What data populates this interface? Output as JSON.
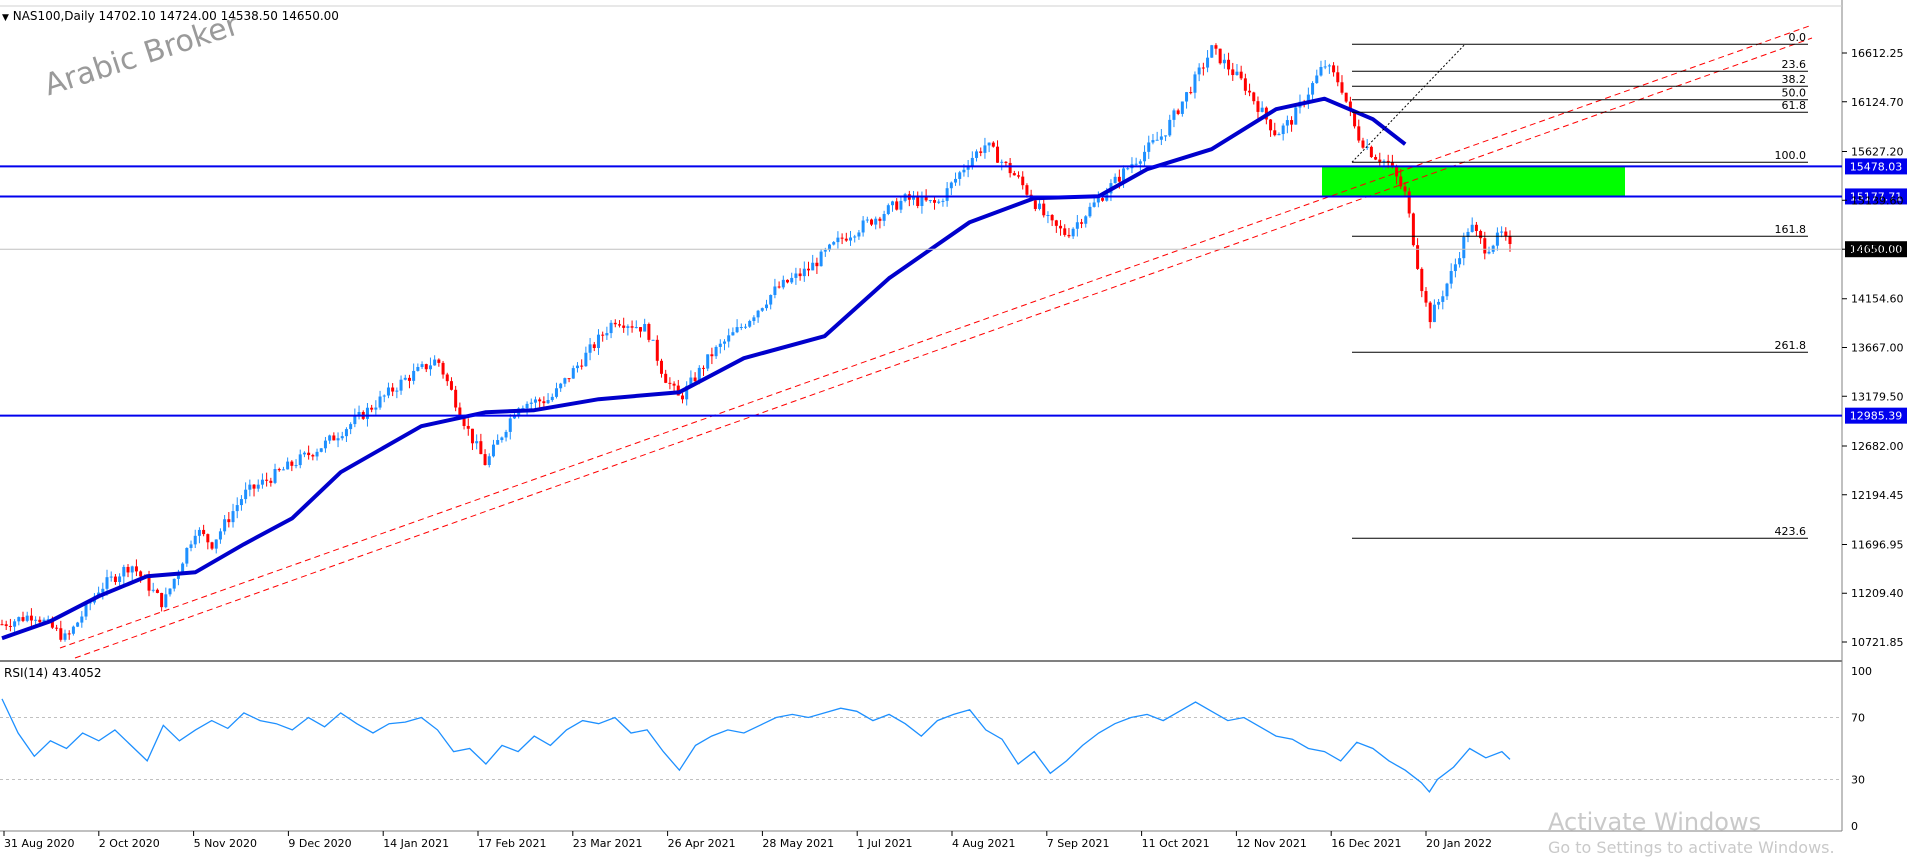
{
  "header": {
    "symbol_line": "NAS100,Daily  14702.10 14724.00 14538.50 14650.00",
    "watermark": "Arabic Broker"
  },
  "price_axis": {
    "ticks": [
      "16612.25",
      "16124.70",
      "15627.20",
      "15139.60",
      "14650.00",
      "14154.60",
      "13667.00",
      "13179.50",
      "12682.00",
      "12194.45",
      "11696.95",
      "11209.40",
      "10721.85"
    ],
    "tick_values": [
      16612.25,
      16124.7,
      15627.2,
      15139.6,
      14650.0,
      14154.6,
      13667.0,
      13179.5,
      12682.0,
      12194.45,
      11696.95,
      11209.4,
      10721.85
    ]
  },
  "horizontal_levels": [
    {
      "label": "15478.03",
      "value": 15478.03,
      "color": "#0000ee"
    },
    {
      "label": "15177.71",
      "value": 15177.71,
      "color": "#0000ee"
    },
    {
      "label": "12985.39",
      "value": 12985.39,
      "color": "#0000ee"
    }
  ],
  "current_price": {
    "label": "14650.00",
    "value": 14650.0
  },
  "fibonacci": {
    "levels": [
      {
        "label": "0.0",
        "value": 16700
      },
      {
        "label": "23.6",
        "value": 16430
      },
      {
        "label": "38.2",
        "value": 16280
      },
      {
        "label": "50.0",
        "value": 16145
      },
      {
        "label": "61.8",
        "value": 16020
      },
      {
        "label": "100.0",
        "value": 15520
      },
      {
        "label": "161.8",
        "value": 14780
      },
      {
        "label": "261.8",
        "value": 13620
      },
      {
        "label": "423.6",
        "value": 11760
      }
    ]
  },
  "x_axis": {
    "labels": [
      "31 Aug 2020",
      "2 Oct 2020",
      "5 Nov 2020",
      "9 Dec 2020",
      "14 Jan 2021",
      "17 Feb 2021",
      "23 Mar 2021",
      "26 Apr 2021",
      "28 May 2021",
      "1 Jul 2021",
      "4 Aug 2021",
      "7 Sep 2021",
      "11 Oct 2021",
      "12 Nov 2021",
      "16 Dec 2021",
      "20 Jan 2022"
    ]
  },
  "rsi": {
    "label": "RSI(14) 43.4052",
    "ticks": [
      "100",
      "70",
      "30",
      "0"
    ],
    "levels": [
      100,
      70,
      30,
      0
    ]
  },
  "chart_data": {
    "type": "candlestick",
    "title": "NAS100,Daily",
    "ylim": [
      10500,
      17000
    ],
    "x_range": [
      "31 Aug 2020",
      "20 Jan 2022"
    ],
    "ohlc_last": {
      "open": 14702.1,
      "high": 14724.0,
      "low": 14538.5,
      "close": 14650.0
    },
    "ma_series": [
      {
        "x": 0,
        "y": 10760
      },
      {
        "x": 0.03,
        "y": 10930
      },
      {
        "x": 0.06,
        "y": 11180
      },
      {
        "x": 0.09,
        "y": 11380
      },
      {
        "x": 0.12,
        "y": 11420
      },
      {
        "x": 0.15,
        "y": 11700
      },
      {
        "x": 0.18,
        "y": 11960
      },
      {
        "x": 0.21,
        "y": 12420
      },
      {
        "x": 0.26,
        "y": 12880
      },
      {
        "x": 0.3,
        "y": 13020
      },
      {
        "x": 0.33,
        "y": 13040
      },
      {
        "x": 0.37,
        "y": 13150
      },
      {
        "x": 0.42,
        "y": 13220
      },
      {
        "x": 0.46,
        "y": 13560
      },
      {
        "x": 0.51,
        "y": 13780
      },
      {
        "x": 0.55,
        "y": 14360
      },
      {
        "x": 0.6,
        "y": 14920
      },
      {
        "x": 0.64,
        "y": 15160
      },
      {
        "x": 0.68,
        "y": 15180
      },
      {
        "x": 0.71,
        "y": 15450
      },
      {
        "x": 0.75,
        "y": 15650
      },
      {
        "x": 0.79,
        "y": 16050
      },
      {
        "x": 0.82,
        "y": 16155
      },
      {
        "x": 0.85,
        "y": 15950
      },
      {
        "x": 0.87,
        "y": 15700
      }
    ],
    "rsi_series": [
      {
        "x": 0.0,
        "y": 82
      },
      {
        "x": 0.01,
        "y": 60
      },
      {
        "x": 0.02,
        "y": 45
      },
      {
        "x": 0.03,
        "y": 55
      },
      {
        "x": 0.04,
        "y": 50
      },
      {
        "x": 0.05,
        "y": 60
      },
      {
        "x": 0.06,
        "y": 55
      },
      {
        "x": 0.07,
        "y": 62
      },
      {
        "x": 0.08,
        "y": 52
      },
      {
        "x": 0.09,
        "y": 42
      },
      {
        "x": 0.1,
        "y": 65
      },
      {
        "x": 0.11,
        "y": 55
      },
      {
        "x": 0.12,
        "y": 62
      },
      {
        "x": 0.13,
        "y": 68
      },
      {
        "x": 0.14,
        "y": 63
      },
      {
        "x": 0.15,
        "y": 73
      },
      {
        "x": 0.16,
        "y": 68
      },
      {
        "x": 0.17,
        "y": 66
      },
      {
        "x": 0.18,
        "y": 62
      },
      {
        "x": 0.19,
        "y": 70
      },
      {
        "x": 0.2,
        "y": 64
      },
      {
        "x": 0.21,
        "y": 73
      },
      {
        "x": 0.22,
        "y": 66
      },
      {
        "x": 0.23,
        "y": 60
      },
      {
        "x": 0.24,
        "y": 66
      },
      {
        "x": 0.25,
        "y": 67
      },
      {
        "x": 0.26,
        "y": 70
      },
      {
        "x": 0.27,
        "y": 62
      },
      {
        "x": 0.28,
        "y": 48
      },
      {
        "x": 0.29,
        "y": 50
      },
      {
        "x": 0.3,
        "y": 40
      },
      {
        "x": 0.31,
        "y": 52
      },
      {
        "x": 0.32,
        "y": 48
      },
      {
        "x": 0.33,
        "y": 58
      },
      {
        "x": 0.34,
        "y": 52
      },
      {
        "x": 0.35,
        "y": 62
      },
      {
        "x": 0.36,
        "y": 68
      },
      {
        "x": 0.37,
        "y": 66
      },
      {
        "x": 0.38,
        "y": 70
      },
      {
        "x": 0.39,
        "y": 60
      },
      {
        "x": 0.4,
        "y": 62
      },
      {
        "x": 0.41,
        "y": 48
      },
      {
        "x": 0.42,
        "y": 36
      },
      {
        "x": 0.43,
        "y": 52
      },
      {
        "x": 0.44,
        "y": 58
      },
      {
        "x": 0.45,
        "y": 62
      },
      {
        "x": 0.46,
        "y": 60
      },
      {
        "x": 0.47,
        "y": 65
      },
      {
        "x": 0.48,
        "y": 70
      },
      {
        "x": 0.49,
        "y": 72
      },
      {
        "x": 0.5,
        "y": 70
      },
      {
        "x": 0.51,
        "y": 73
      },
      {
        "x": 0.52,
        "y": 76
      },
      {
        "x": 0.53,
        "y": 74
      },
      {
        "x": 0.54,
        "y": 68
      },
      {
        "x": 0.55,
        "y": 72
      },
      {
        "x": 0.56,
        "y": 66
      },
      {
        "x": 0.57,
        "y": 58
      },
      {
        "x": 0.58,
        "y": 68
      },
      {
        "x": 0.59,
        "y": 72
      },
      {
        "x": 0.6,
        "y": 75
      },
      {
        "x": 0.61,
        "y": 62
      },
      {
        "x": 0.62,
        "y": 56
      },
      {
        "x": 0.63,
        "y": 40
      },
      {
        "x": 0.64,
        "y": 48
      },
      {
        "x": 0.65,
        "y": 34
      },
      {
        "x": 0.66,
        "y": 42
      },
      {
        "x": 0.67,
        "y": 52
      },
      {
        "x": 0.68,
        "y": 60
      },
      {
        "x": 0.69,
        "y": 66
      },
      {
        "x": 0.7,
        "y": 70
      },
      {
        "x": 0.71,
        "y": 72
      },
      {
        "x": 0.72,
        "y": 68
      },
      {
        "x": 0.73,
        "y": 74
      },
      {
        "x": 0.74,
        "y": 80
      },
      {
        "x": 0.75,
        "y": 74
      },
      {
        "x": 0.76,
        "y": 68
      },
      {
        "x": 0.77,
        "y": 70
      },
      {
        "x": 0.78,
        "y": 64
      },
      {
        "x": 0.79,
        "y": 58
      },
      {
        "x": 0.8,
        "y": 56
      },
      {
        "x": 0.81,
        "y": 50
      },
      {
        "x": 0.82,
        "y": 48
      },
      {
        "x": 0.83,
        "y": 42
      },
      {
        "x": 0.84,
        "y": 54
      },
      {
        "x": 0.85,
        "y": 50
      },
      {
        "x": 0.86,
        "y": 42
      },
      {
        "x": 0.87,
        "y": 36
      },
      {
        "x": 0.88,
        "y": 28
      },
      {
        "x": 0.885,
        "y": 22
      },
      {
        "x": 0.89,
        "y": 30
      },
      {
        "x": 0.9,
        "y": 38
      },
      {
        "x": 0.91,
        "y": 50
      },
      {
        "x": 0.92,
        "y": 44
      },
      {
        "x": 0.93,
        "y": 48
      },
      {
        "x": 0.935,
        "y": 43
      }
    ],
    "rsi_last": 43.4052
  }
}
